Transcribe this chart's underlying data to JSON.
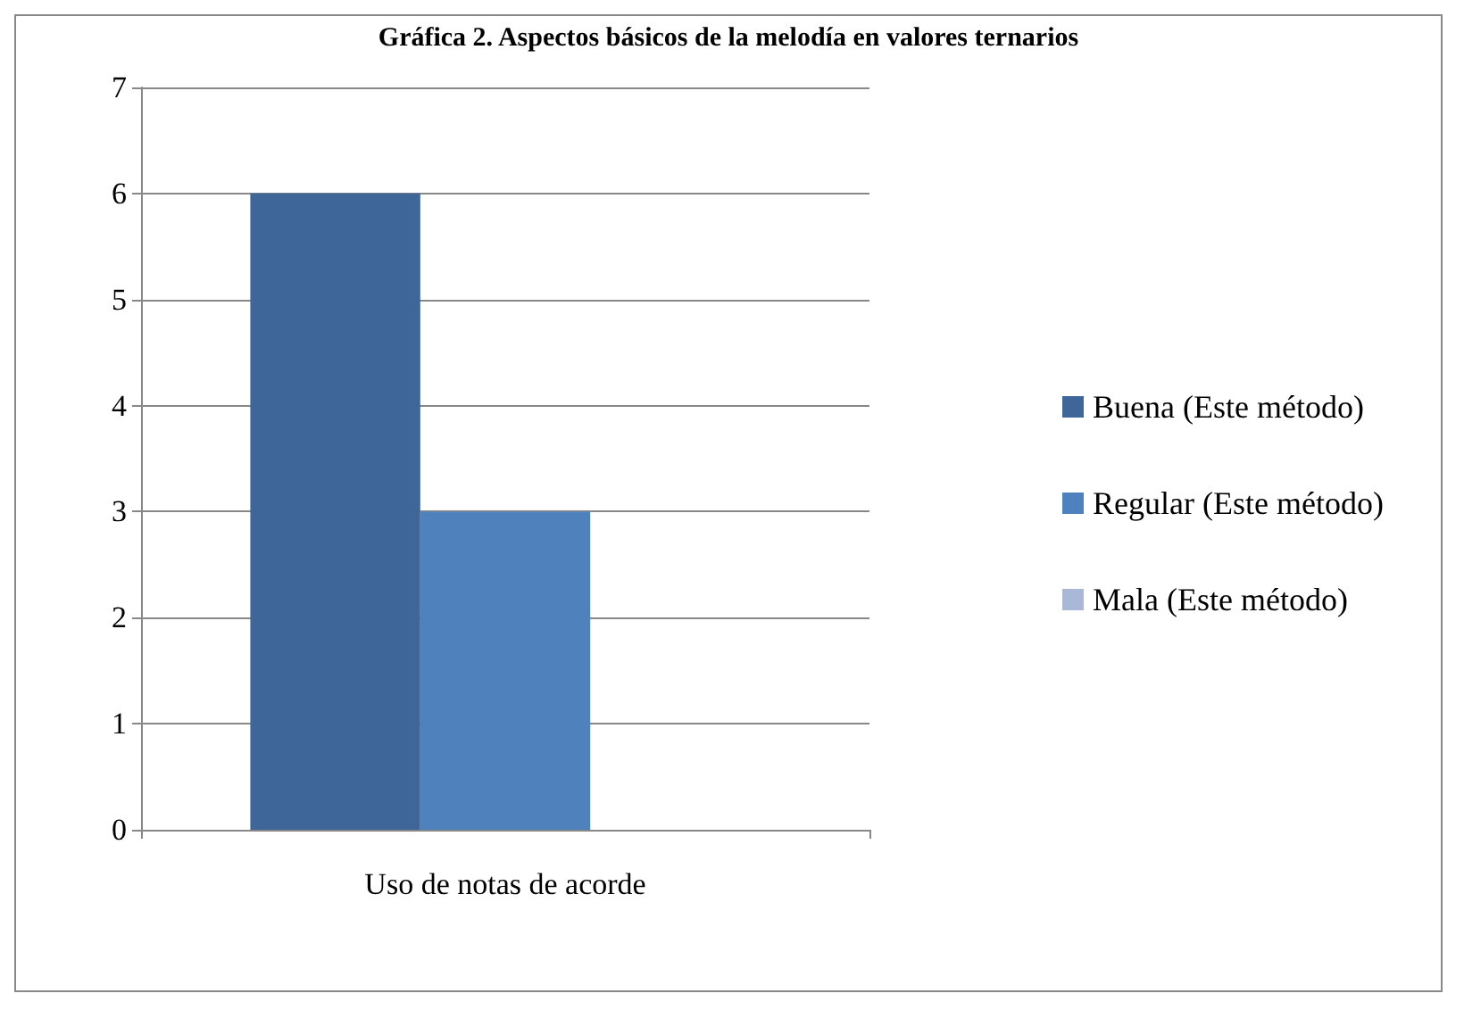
{
  "chart_data": {
    "type": "bar",
    "title": "Gráfica 2. Aspectos básicos de la melodía en valores ternarios",
    "categories": [
      "Uso de notas de acorde"
    ],
    "series": [
      {
        "name": "Buena (Este método)",
        "color": "#3f6699",
        "values": [
          6
        ]
      },
      {
        "name": "Regular (Este método)",
        "color": "#4f81bd",
        "values": [
          3
        ]
      },
      {
        "name": "Mala (Este método)",
        "color": "#a9b8d6",
        "values": [
          0
        ]
      }
    ],
    "ylim": [
      0,
      7
    ],
    "yticks": [
      0,
      1,
      2,
      3,
      4,
      5,
      6,
      7
    ],
    "grid": "y",
    "legend": "right"
  }
}
